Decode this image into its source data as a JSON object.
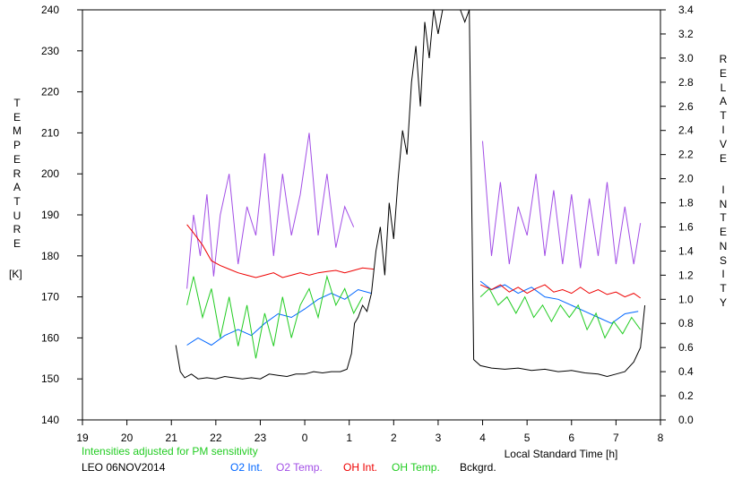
{
  "chart_data": {
    "type": "line",
    "x_ticks": [
      "19",
      "20",
      "21",
      "22",
      "23",
      "0",
      "1",
      "2",
      "3",
      "4",
      "5",
      "6",
      "7",
      "8"
    ],
    "x_range": [
      19,
      32
    ],
    "xlabel": "Local Standard Time [h]",
    "y_left": {
      "label": "TEMPERATURE",
      "unit": "[K]",
      "ticks": [
        "140",
        "150",
        "160",
        "170",
        "180",
        "190",
        "200",
        "210",
        "220",
        "230",
        "240"
      ],
      "range": [
        140,
        240
      ]
    },
    "y_right": {
      "label": "RELATIVE",
      "label2": "INTENSITY",
      "ticks": [
        "0.0",
        "0.2",
        "0.4",
        "0.6",
        "0.8",
        "1.0",
        "1.2",
        "1.4",
        "1.6",
        "1.8",
        "2.0",
        "2.2",
        "2.4",
        "2.6",
        "2.8",
        "3.0",
        "3.2",
        "3.4"
      ],
      "range": [
        0,
        3.4
      ]
    },
    "note": "Intensities adjusted for PM sensitivity",
    "station": "LEO 06NOV2014",
    "colors": {
      "o2_int": "#0066ff",
      "o2_temp": "#a24ee6",
      "oh_int": "#ee0000",
      "oh_temp": "#22cc22",
      "bckgrd": "#000000",
      "note": "#22cc22"
    },
    "series": [
      {
        "key": "o2_int",
        "name": "O2 Int.",
        "axis": "right",
        "segments": [
          [
            [
              21.35,
              0.62
            ],
            [
              21.6,
              0.68
            ],
            [
              21.9,
              0.62
            ],
            [
              22.2,
              0.7
            ],
            [
              22.5,
              0.75
            ],
            [
              22.8,
              0.7
            ],
            [
              23.1,
              0.8
            ],
            [
              23.4,
              0.88
            ],
            [
              23.7,
              0.85
            ],
            [
              24.0,
              0.92
            ],
            [
              24.3,
              1.0
            ],
            [
              24.6,
              1.05
            ],
            [
              24.9,
              1.0
            ],
            [
              25.2,
              1.08
            ],
            [
              25.5,
              1.05
            ]
          ],
          [
            [
              27.95,
              1.15
            ],
            [
              28.2,
              1.08
            ],
            [
              28.5,
              1.12
            ],
            [
              28.8,
              1.05
            ],
            [
              29.1,
              1.1
            ],
            [
              29.4,
              1.02
            ],
            [
              29.7,
              1.0
            ],
            [
              30.0,
              0.95
            ],
            [
              30.3,
              0.9
            ],
            [
              30.6,
              0.85
            ],
            [
              30.9,
              0.8
            ],
            [
              31.2,
              0.88
            ],
            [
              31.5,
              0.9
            ]
          ]
        ]
      },
      {
        "key": "o2_temp",
        "name": "O2 Temp.",
        "axis": "left",
        "segments": [
          [
            [
              21.35,
              172
            ],
            [
              21.5,
              190
            ],
            [
              21.65,
              180
            ],
            [
              21.8,
              195
            ],
            [
              21.95,
              175
            ],
            [
              22.1,
              190
            ],
            [
              22.3,
              200
            ],
            [
              22.5,
              178
            ],
            [
              22.7,
              192
            ],
            [
              22.9,
              185
            ],
            [
              23.1,
              205
            ],
            [
              23.3,
              180
            ],
            [
              23.5,
              200
            ],
            [
              23.7,
              185
            ],
            [
              23.9,
              195
            ],
            [
              24.1,
              210
            ],
            [
              24.3,
              185
            ],
            [
              24.5,
              200
            ],
            [
              24.7,
              182
            ],
            [
              24.9,
              192
            ],
            [
              25.1,
              187
            ]
          ],
          [
            [
              28.0,
              208
            ],
            [
              28.2,
              180
            ],
            [
              28.4,
              198
            ],
            [
              28.6,
              178
            ],
            [
              28.8,
              192
            ],
            [
              29.0,
              185
            ],
            [
              29.2,
              200
            ],
            [
              29.4,
              180
            ],
            [
              29.6,
              196
            ],
            [
              29.8,
              178
            ],
            [
              30.0,
              195
            ],
            [
              30.2,
              177
            ],
            [
              30.4,
              194
            ],
            [
              30.6,
              180
            ],
            [
              30.8,
              198
            ],
            [
              31.0,
              178
            ],
            [
              31.2,
              192
            ],
            [
              31.4,
              178
            ],
            [
              31.55,
              188
            ]
          ]
        ]
      },
      {
        "key": "oh_int",
        "name": "OH Int.",
        "axis": "right",
        "segments": [
          [
            [
              21.35,
              1.62
            ],
            [
              21.5,
              1.55
            ],
            [
              21.7,
              1.45
            ],
            [
              21.9,
              1.32
            ],
            [
              22.1,
              1.28
            ],
            [
              22.3,
              1.25
            ],
            [
              22.5,
              1.22
            ],
            [
              22.7,
              1.2
            ],
            [
              22.9,
              1.18
            ],
            [
              23.1,
              1.2
            ],
            [
              23.3,
              1.22
            ],
            [
              23.5,
              1.18
            ],
            [
              23.7,
              1.2
            ],
            [
              23.9,
              1.22
            ],
            [
              24.1,
              1.2
            ],
            [
              24.3,
              1.22
            ],
            [
              24.5,
              1.23
            ],
            [
              24.7,
              1.24
            ],
            [
              24.9,
              1.22
            ],
            [
              25.1,
              1.24
            ],
            [
              25.3,
              1.26
            ],
            [
              25.55,
              1.25
            ]
          ],
          [
            [
              27.95,
              1.12
            ],
            [
              28.2,
              1.08
            ],
            [
              28.4,
              1.12
            ],
            [
              28.6,
              1.06
            ],
            [
              28.8,
              1.1
            ],
            [
              29.0,
              1.05
            ],
            [
              29.2,
              1.09
            ],
            [
              29.4,
              1.12
            ],
            [
              29.6,
              1.06
            ],
            [
              29.8,
              1.08
            ],
            [
              30.0,
              1.05
            ],
            [
              30.2,
              1.1
            ],
            [
              30.4,
              1.05
            ],
            [
              30.6,
              1.08
            ],
            [
              30.8,
              1.04
            ],
            [
              31.0,
              1.06
            ],
            [
              31.2,
              1.02
            ],
            [
              31.4,
              1.05
            ],
            [
              31.55,
              1.01
            ]
          ]
        ]
      },
      {
        "key": "oh_temp",
        "name": "OH Temp.",
        "axis": "left",
        "segments": [
          [
            [
              21.35,
              168
            ],
            [
              21.5,
              175
            ],
            [
              21.7,
              165
            ],
            [
              21.9,
              172
            ],
            [
              22.1,
              160
            ],
            [
              22.3,
              170
            ],
            [
              22.5,
              158
            ],
            [
              22.7,
              168
            ],
            [
              22.9,
              155
            ],
            [
              23.1,
              166
            ],
            [
              23.3,
              158
            ],
            [
              23.5,
              170
            ],
            [
              23.7,
              160
            ],
            [
              23.9,
              168
            ],
            [
              24.1,
              172
            ],
            [
              24.3,
              165
            ],
            [
              24.5,
              175
            ],
            [
              24.7,
              168
            ],
            [
              24.9,
              172
            ],
            [
              25.1,
              166
            ],
            [
              25.3,
              170
            ]
          ],
          [
            [
              27.95,
              170
            ],
            [
              28.15,
              172
            ],
            [
              28.35,
              168
            ],
            [
              28.55,
              170
            ],
            [
              28.75,
              166
            ],
            [
              28.95,
              170
            ],
            [
              29.15,
              165
            ],
            [
              29.35,
              168
            ],
            [
              29.55,
              164
            ],
            [
              29.75,
              168
            ],
            [
              29.95,
              165
            ],
            [
              30.15,
              168
            ],
            [
              30.35,
              162
            ],
            [
              30.55,
              166
            ],
            [
              30.75,
              160
            ],
            [
              30.95,
              164
            ],
            [
              31.15,
              161
            ],
            [
              31.35,
              165
            ],
            [
              31.55,
              162
            ]
          ]
        ]
      },
      {
        "key": "bckgrd",
        "name": "Bckgrd.",
        "axis": "right",
        "segments": [
          [
            [
              21.1,
              0.62
            ],
            [
              21.2,
              0.4
            ],
            [
              21.3,
              0.35
            ],
            [
              21.45,
              0.38
            ],
            [
              21.6,
              0.34
            ],
            [
              21.8,
              0.35
            ],
            [
              22.0,
              0.34
            ],
            [
              22.2,
              0.36
            ],
            [
              22.4,
              0.35
            ],
            [
              22.6,
              0.34
            ],
            [
              22.8,
              0.35
            ],
            [
              23.0,
              0.34
            ],
            [
              23.2,
              0.38
            ],
            [
              23.4,
              0.37
            ],
            [
              23.6,
              0.36
            ],
            [
              23.8,
              0.38
            ],
            [
              24.0,
              0.38
            ],
            [
              24.2,
              0.4
            ],
            [
              24.4,
              0.39
            ],
            [
              24.6,
              0.4
            ],
            [
              24.8,
              0.4
            ],
            [
              24.95,
              0.42
            ],
            [
              25.05,
              0.55
            ],
            [
              25.12,
              0.8
            ],
            [
              25.2,
              0.85
            ],
            [
              25.3,
              0.95
            ],
            [
              25.4,
              0.9
            ],
            [
              25.5,
              1.05
            ],
            [
              25.6,
              1.4
            ],
            [
              25.7,
              1.6
            ],
            [
              25.8,
              1.2
            ],
            [
              25.9,
              1.8
            ],
            [
              26.0,
              1.5
            ],
            [
              26.1,
              2.0
            ],
            [
              26.2,
              2.4
            ],
            [
              26.3,
              2.2
            ],
            [
              26.4,
              2.8
            ],
            [
              26.5,
              3.1
            ],
            [
              26.6,
              2.6
            ],
            [
              26.7,
              3.3
            ],
            [
              26.8,
              3.0
            ],
            [
              26.9,
              3.4
            ],
            [
              27.0,
              3.2
            ],
            [
              27.1,
              3.4
            ],
            [
              27.2,
              3.4
            ],
            [
              27.3,
              3.4
            ],
            [
              27.4,
              3.4
            ],
            [
              27.5,
              3.4
            ],
            [
              27.6,
              3.3
            ],
            [
              27.7,
              3.4
            ],
            [
              27.8,
              0.5
            ],
            [
              27.95,
              0.45
            ],
            [
              28.2,
              0.43
            ],
            [
              28.5,
              0.42
            ],
            [
              28.8,
              0.43
            ],
            [
              29.1,
              0.41
            ],
            [
              29.4,
              0.42
            ],
            [
              29.7,
              0.4
            ],
            [
              30.0,
              0.41
            ],
            [
              30.3,
              0.39
            ],
            [
              30.6,
              0.38
            ],
            [
              30.8,
              0.36
            ],
            [
              31.0,
              0.38
            ],
            [
              31.2,
              0.4
            ],
            [
              31.4,
              0.48
            ],
            [
              31.55,
              0.6
            ],
            [
              31.65,
              0.95
            ]
          ]
        ]
      }
    ]
  }
}
